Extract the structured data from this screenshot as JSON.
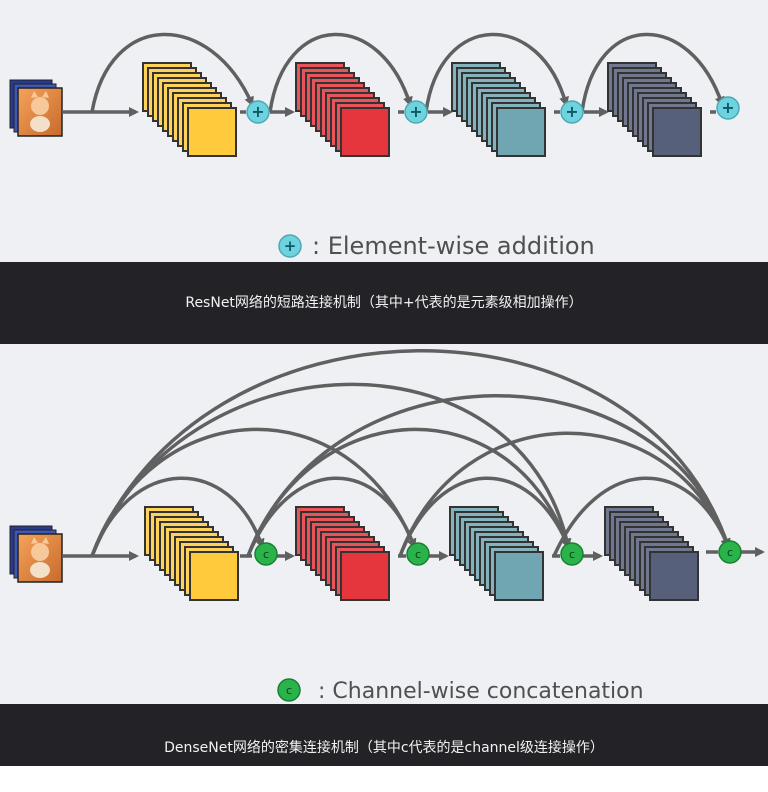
{
  "resnet": {
    "legend_symbol": "+",
    "legend_text": ": Element-wise addition",
    "caption": "ResNet网络的短路连接机制（其中+代表的是元素级相加操作）"
  },
  "densenet": {
    "legend_symbol": "c",
    "legend_text": ": Channel-wise concatenation",
    "caption": "DenseNet网络的密集连接机制（其中c代表的是channel级连接操作）"
  },
  "colors": {
    "yellow_block": "#ffcb3d",
    "red_block": "#e5363d",
    "teal_block": "#6fa6b1",
    "slate_block": "#56607a",
    "add_node": "#6fd3df",
    "concat_node": "#2ab34a",
    "arrow": "#606060",
    "caption_bar": "#232327"
  }
}
